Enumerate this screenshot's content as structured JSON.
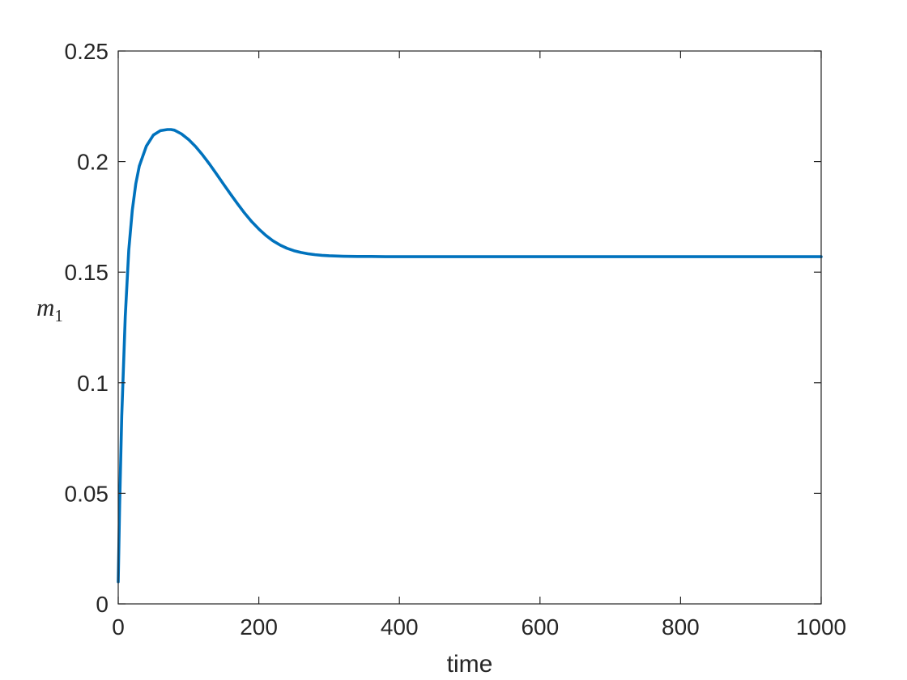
{
  "chart_data": {
    "type": "line",
    "title": "",
    "xlabel": "time",
    "ylabel": {
      "base": "m",
      "subscript": "1"
    },
    "xlim": [
      0,
      1000
    ],
    "ylim": [
      0,
      0.25
    ],
    "xticks": [
      0,
      200,
      400,
      600,
      800,
      1000
    ],
    "xtick_labels": [
      "0",
      "200",
      "400",
      "600",
      "800",
      "1000"
    ],
    "yticks": [
      0,
      0.05,
      0.1,
      0.15,
      0.2,
      0.25
    ],
    "ytick_labels": [
      "0",
      "0.05",
      "0.1",
      "0.15",
      "0.2",
      "0.25"
    ],
    "grid": false,
    "box": true,
    "series": [
      {
        "color": "#0072BD",
        "x": [
          0,
          2,
          5,
          10,
          15,
          20,
          25,
          30,
          40,
          50,
          60,
          70,
          75,
          80,
          90,
          100,
          110,
          120,
          130,
          140,
          150,
          160,
          170,
          180,
          190,
          200,
          210,
          220,
          230,
          240,
          250,
          260,
          270,
          280,
          290,
          300,
          320,
          340,
          360,
          380,
          400,
          450,
          500,
          600,
          700,
          800,
          900,
          1000
        ],
        "y": [
          0.01,
          0.045,
          0.085,
          0.13,
          0.16,
          0.178,
          0.19,
          0.198,
          0.207,
          0.212,
          0.214,
          0.2145,
          0.2145,
          0.2142,
          0.2125,
          0.21,
          0.2068,
          0.203,
          0.1988,
          0.1943,
          0.1897,
          0.1852,
          0.1808,
          0.1766,
          0.1728,
          0.1695,
          0.1666,
          0.1642,
          0.1623,
          0.1608,
          0.1597,
          0.1589,
          0.1583,
          0.1579,
          0.1576,
          0.1574,
          0.1572,
          0.1571,
          0.1571,
          0.157,
          0.157,
          0.157,
          0.157,
          0.157,
          0.157,
          0.157,
          0.157,
          0.157
        ]
      }
    ]
  }
}
